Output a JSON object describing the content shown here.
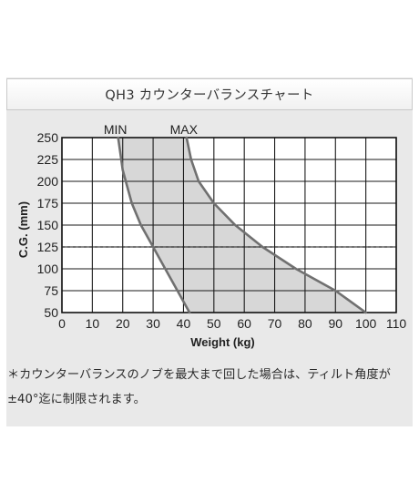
{
  "header": {
    "title": "QH3 カウンターバランスチャート"
  },
  "footnote": {
    "line1": "＊カウンターバランスのノブを最大まで回した場合は、ティルト角度が",
    "line2": "±40°迄に制限されます。"
  },
  "chart_data": {
    "type": "area",
    "title": "",
    "xlabel": "Weight (kg)",
    "ylabel": "C.G. (mm)",
    "xlim": [
      0,
      110
    ],
    "ylim": [
      50,
      250
    ],
    "xticks": [
      0,
      10,
      20,
      30,
      40,
      50,
      60,
      70,
      80,
      90,
      100,
      110
    ],
    "yticks": [
      50,
      75,
      100,
      125,
      150,
      175,
      200,
      225,
      250
    ],
    "grid": true,
    "reference_line": {
      "y": 125,
      "style": "dashed"
    },
    "series": [
      {
        "name": "MIN",
        "x": [
          18.5,
          19.5,
          20,
          21,
          23,
          26,
          30,
          34,
          38,
          42
        ],
        "y": [
          250,
          225,
          213,
          200,
          175,
          150,
          125,
          100,
          75,
          50
        ]
      },
      {
        "name": "MAX",
        "x": [
          41,
          42.5,
          45,
          50,
          57,
          66,
          77,
          90,
          100
        ],
        "y": [
          250,
          225,
          200,
          175,
          150,
          125,
          100,
          75,
          50
        ]
      }
    ],
    "colors": {
      "curve": "#707070",
      "fill": "#d7d7d7",
      "grid": "#1a1a1a",
      "panel": "#e9e9e9"
    }
  }
}
